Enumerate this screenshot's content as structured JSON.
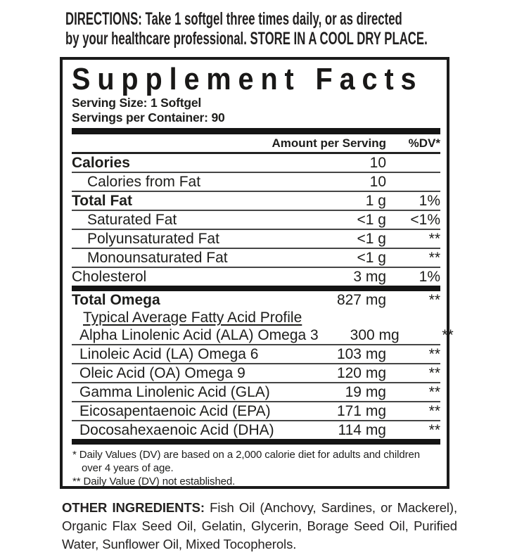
{
  "colors": {
    "background": "#ffffff",
    "text": "#1d1d1b",
    "thin_rule": "#454545",
    "thick_bar": "#141414"
  },
  "directions": {
    "label": "DIRECTIONS:",
    "line1_rest": " Take 1 softgel three times daily, or as directed",
    "line2_start": "by your healthcare professional. ",
    "line2_emphasis": "STORE IN A COOL DRY PLACE."
  },
  "supplement_facts": {
    "title": "Supplement Facts",
    "serving_size": "Serving Size: 1 Softgel",
    "servings_per_container": "Servings per Container: 90",
    "header": {
      "amount": "Amount per Serving",
      "dv": "%DV*"
    },
    "rows": [
      {
        "name": "Calories",
        "amount": "10",
        "dv": "",
        "style": "bold"
      },
      {
        "name": "Calories from Fat",
        "amount": "10",
        "dv": "",
        "style": "indent"
      },
      {
        "name": "Total Fat",
        "amount": "1 g",
        "dv": "1%",
        "style": "bold"
      },
      {
        "name": "Saturated Fat",
        "amount": "<1 g",
        "dv": "<1%",
        "style": "indent"
      },
      {
        "name": "Polyunsaturated Fat",
        "amount": "<1 g",
        "dv": "**",
        "style": "indent"
      },
      {
        "name": "Monounsaturated Fat",
        "amount": "<1 g",
        "dv": "**",
        "style": "indent"
      },
      {
        "name": "Cholesterol",
        "amount": "3 mg",
        "dv": "1%",
        "style": "",
        "no_rule": true,
        "bar_after": true
      },
      {
        "name": "Total Omega",
        "amount": "827 mg",
        "dv": "**",
        "style": "bold",
        "no_rule": true
      },
      {
        "name": "Typical Average Fatty Acid Profile",
        "amount": "",
        "dv": "",
        "style": "indent-md underline",
        "no_rule": true
      },
      {
        "name": "Alpha Linolenic Acid (ALA) Omega 3",
        "amount": "300 mg",
        "dv": "**",
        "style": "indent-sm"
      },
      {
        "name": "Linoleic Acid (LA) Omega 6",
        "amount": "103 mg",
        "dv": "**",
        "style": "indent-sm"
      },
      {
        "name": "Oleic Acid (OA) Omega 9",
        "amount": "120 mg",
        "dv": "**",
        "style": "indent-sm"
      },
      {
        "name": "Gamma Linolenic Acid (GLA)",
        "amount": "19 mg",
        "dv": "**",
        "style": "indent-sm"
      },
      {
        "name": "Eicosapentaenoic Acid (EPA)",
        "amount": "171 mg",
        "dv": "**",
        "style": "indent-sm"
      },
      {
        "name": "Docosahexaenoic Acid (DHA)",
        "amount": "114 mg",
        "dv": "**",
        "style": "indent-sm",
        "no_rule": true,
        "bar_after": true
      }
    ],
    "footnotes": [
      "* Daily Values (DV) are based on a 2,000 calorie diet for adults and children over 4 years of age.",
      "** Daily Value (DV) not established."
    ]
  },
  "other_ingredients": {
    "label": "OTHER INGREDIENTS:",
    "text": " Fish Oil (Anchovy, Sardines, or Mackerel), Organic Flax Seed Oil, Gelatin, Glycerin, Borage Seed Oil, Purified Water, Sunflower Oil, Mixed Tocopherols."
  }
}
